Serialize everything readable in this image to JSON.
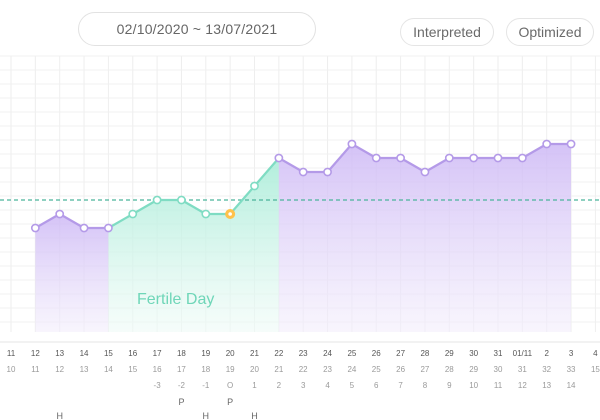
{
  "header": {
    "date_range": "02/10/2020 ~ 13/07/2021",
    "interpreted_label": "Interpreted",
    "optimized_label": "Optimized"
  },
  "colors": {
    "line_normal": "#b49ae8",
    "line_fertile": "#7fdcc3",
    "fill_normal": "#d9c9f7",
    "fill_fertile": "#c8f3e5",
    "coverline": "#4bb39a",
    "ovulation_marker": "#ffc24a"
  },
  "chart_data": {
    "type": "line",
    "fertile_label": "Fertile Day",
    "row1_dates": [
      "11",
      "12",
      "13",
      "14",
      "15",
      "16",
      "17",
      "18",
      "19",
      "20",
      "21",
      "22",
      "23",
      "24",
      "25",
      "26",
      "27",
      "28",
      "29",
      "30",
      "31",
      "01/11",
      "2",
      "3",
      "4"
    ],
    "row2_cycle_days": [
      "10",
      "11",
      "12",
      "13",
      "14",
      "15",
      "16",
      "17",
      "18",
      "19",
      "20",
      "21",
      "22",
      "23",
      "24",
      "25",
      "26",
      "27",
      "28",
      "29",
      "30",
      "31",
      "32",
      "33",
      "15"
    ],
    "row3_ovulation_offsets": [
      "",
      "",
      "",
      "",
      "",
      "",
      "-3",
      "-2",
      "-1",
      "O",
      "1",
      "2",
      "3",
      "4",
      "5",
      "6",
      "7",
      "8",
      "9",
      "10",
      "11",
      "12",
      "13",
      "14",
      ""
    ],
    "row4_marks": [
      "",
      "",
      "P",
      "",
      "",
      "",
      "",
      "",
      "",
      "",
      "",
      "",
      "",
      "",
      "",
      "",
      "",
      "",
      "",
      "",
      "",
      "",
      "",
      "",
      ""
    ],
    "row5_marks": [
      "",
      "",
      "H",
      "",
      "",
      "",
      "",
      "",
      "H",
      "",
      "H",
      "",
      "",
      "",
      "",
      "",
      "",
      "",
      "",
      "",
      "",
      "",
      "",
      "",
      ""
    ],
    "row4_marks_full": [
      "",
      "",
      "",
      "",
      "",
      "",
      "",
      "P",
      "",
      "P",
      "",
      "",
      "",
      "",
      "",
      "",
      "",
      "",
      "",
      "",
      "",
      "",
      "",
      "",
      ""
    ],
    "row5_marks_full": [
      "",
      "",
      "H",
      "",
      "",
      "",
      "",
      "",
      "H",
      "",
      "H",
      "",
      "",
      "",
      "",
      "",
      "",
      "",
      "",
      "",
      "",
      "",
      "",
      "",
      ""
    ],
    "series": [
      {
        "values": [
          null,
          35.8,
          35.9,
          35.8,
          35.8,
          35.9,
          36.0,
          36.0,
          35.9,
          35.9,
          36.1,
          36.3,
          36.2,
          36.2,
          36.4,
          36.3,
          36.3,
          36.2,
          36.3,
          36.3,
          36.3,
          36.3,
          36.4,
          36.4,
          null
        ]
      }
    ],
    "fertile_start_index": 4,
    "fertile_end_index": 11,
    "ovulation_index": 9,
    "coverline": 36.0,
    "ylim": [
      35.0,
      37.0
    ],
    "grid": true
  }
}
